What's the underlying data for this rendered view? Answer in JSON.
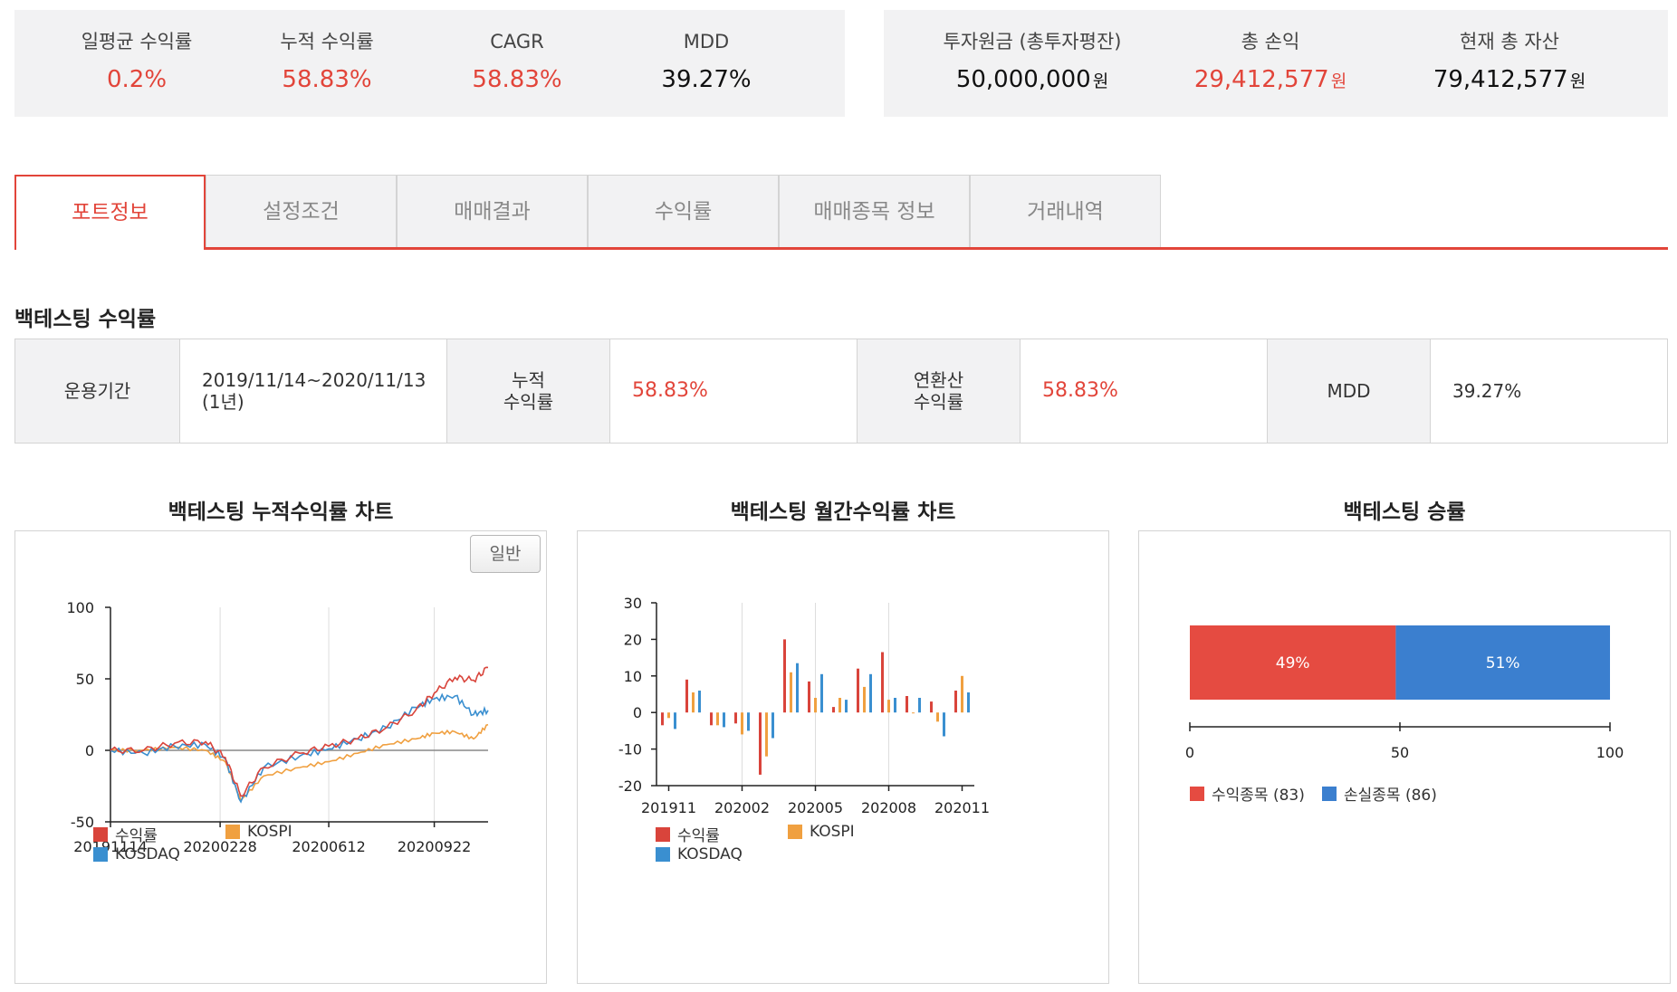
{
  "summary_left": [
    {
      "label": "일평균 수익률",
      "value": "0.2%",
      "red": true
    },
    {
      "label": "누적 수익률",
      "value": "58.83%",
      "red": true
    },
    {
      "label": "CAGR",
      "value": "58.83%",
      "red": true
    },
    {
      "label": "MDD",
      "value": "39.27%",
      "red": false
    }
  ],
  "summary_right": [
    {
      "label": "투자원금 (총투자평잔)",
      "value": "50,000,000",
      "unit": "원",
      "red": false
    },
    {
      "label": "총 손익",
      "value": "29,412,577",
      "unit": "원",
      "red": true
    },
    {
      "label": "현재 총 자산",
      "value": "79,412,577",
      "unit": "원",
      "red": false
    }
  ],
  "tabs": [
    {
      "label": "포트정보",
      "active": true
    },
    {
      "label": "설정조건",
      "active": false
    },
    {
      "label": "매매결과",
      "active": false
    },
    {
      "label": "수익률",
      "active": false
    },
    {
      "label": "매매종목 정보",
      "active": false
    },
    {
      "label": "거래내역",
      "active": false
    }
  ],
  "section_title": "백테스팅 수익률",
  "info_table": {
    "period_label": "운용기간",
    "period_value": "2019/11/14~2020/11/13",
    "period_sub": "(1년)",
    "cum_label_1": "누적",
    "cum_label_2": "수익률",
    "cum_value": "58.83%",
    "annual_label_1": "연환산",
    "annual_label_2": "수익률",
    "annual_value": "58.83%",
    "mdd_label": "MDD",
    "mdd_value": "39.27%"
  },
  "colors": {
    "accent": "#e2453a",
    "returns": "#d9443b",
    "kospi": "#f0a040",
    "kosdaq": "#3a8fd0",
    "win": "#e54b41",
    "loss": "#3b7fcf"
  },
  "mode_button": "일반",
  "chart_data": [
    {
      "type": "line",
      "title": "백테스팅 누적수익률 차트",
      "ylim": [
        -50,
        100
      ],
      "yticks": [
        "100",
        "50",
        "0",
        "-50"
      ],
      "xticks": [
        "20191114",
        "20200228",
        "20200612",
        "20200922"
      ],
      "grid": true,
      "legend": "bottom",
      "x": [
        "2019-11-14",
        "2019-12-16",
        "2020-01-15",
        "2020-02-14",
        "2020-03-04",
        "2020-03-19",
        "2020-04-10",
        "2020-05-15",
        "2020-06-12",
        "2020-07-10",
        "2020-08-07",
        "2020-09-04",
        "2020-09-22",
        "2020-10-12",
        "2020-10-30",
        "2020-11-13"
      ],
      "series": [
        {
          "name": "수익률",
          "values": [
            0,
            0,
            5,
            6,
            -5,
            -32,
            -12,
            -2,
            3,
            8,
            16,
            28,
            40,
            51,
            49,
            58
          ]
        },
        {
          "name": "KOSPI",
          "values": [
            0,
            0,
            2,
            0,
            -8,
            -35,
            -18,
            -12,
            -8,
            -2,
            4,
            8,
            12,
            13,
            8,
            18
          ]
        },
        {
          "name": "KOSDAQ",
          "values": [
            0,
            -2,
            3,
            4,
            -6,
            -36,
            -12,
            -4,
            1,
            8,
            16,
            30,
            36,
            38,
            25,
            28
          ]
        }
      ]
    },
    {
      "type": "bar",
      "title": "백테스팅 월간수익률 차트",
      "ylim": [
        -20,
        30
      ],
      "yticks": [
        "30",
        "20",
        "10",
        "0",
        "-10",
        "-20"
      ],
      "xticks": [
        "201911",
        "202002",
        "202005",
        "202008",
        "202011"
      ],
      "categories": [
        "201911",
        "201912",
        "202001",
        "202002",
        "202003",
        "202004",
        "202005",
        "202006",
        "202007",
        "202008",
        "202009",
        "202010",
        "202011"
      ],
      "legend": "bottom",
      "series": [
        {
          "name": "수익률",
          "values": [
            -3.5,
            9,
            -3.5,
            -3,
            -17,
            20,
            8.5,
            1.5,
            12,
            16.5,
            4.5,
            3,
            6
          ]
        },
        {
          "name": "KOSPI",
          "values": [
            -1.5,
            5.5,
            -3.5,
            -6,
            -12,
            11,
            4,
            4,
            7,
            3.5,
            0,
            -2.5,
            10
          ]
        },
        {
          "name": "KOSDAQ",
          "values": [
            -4.5,
            6,
            -4,
            -5,
            -7,
            13.5,
            10.5,
            3.5,
            10.5,
            4,
            4,
            -6.5,
            5.5
          ]
        }
      ]
    },
    {
      "type": "bar",
      "title": "백테스팅 승률",
      "xlim": [
        0,
        100
      ],
      "xticks": [
        "0",
        "50",
        "100"
      ],
      "legend": "bottom",
      "series": [
        {
          "name": "수익종목 (83)",
          "value": 49,
          "label": "49%"
        },
        {
          "name": "손실종목 (86)",
          "value": 51,
          "label": "51%"
        }
      ]
    }
  ]
}
